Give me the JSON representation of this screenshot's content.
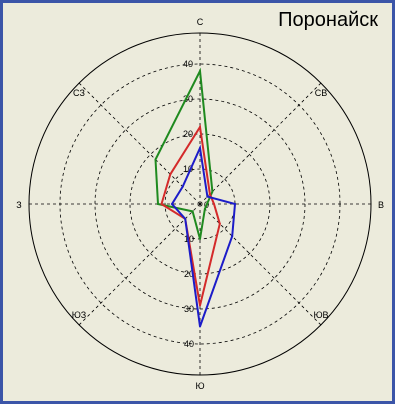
{
  "chart_data": {
    "type": "radar",
    "title": "Поронайск",
    "directions": [
      "С",
      "СВ",
      "В",
      "ЮВ",
      "Ю",
      "ЮЗ",
      "З",
      "СЗ"
    ],
    "rlim": [
      0,
      40
    ],
    "ring_ticks": [
      10,
      20,
      30,
      40
    ],
    "tick_labels_north": [
      "10",
      "20",
      "30",
      "40"
    ],
    "tick_labels_south": [
      "10",
      "20",
      "30",
      "40"
    ],
    "grid": true,
    "series": [
      {
        "color": "#1f8a1f",
        "values": [
          38,
          5,
          2,
          2,
          10,
          3,
          12,
          18
        ]
      },
      {
        "color": "#d42a2a",
        "values": [
          22,
          4,
          4,
          8,
          29,
          6,
          11,
          12
        ]
      },
      {
        "color": "#1c1cc8",
        "values": [
          16,
          3,
          10,
          13,
          35,
          6,
          8,
          7
        ]
      }
    ]
  }
}
